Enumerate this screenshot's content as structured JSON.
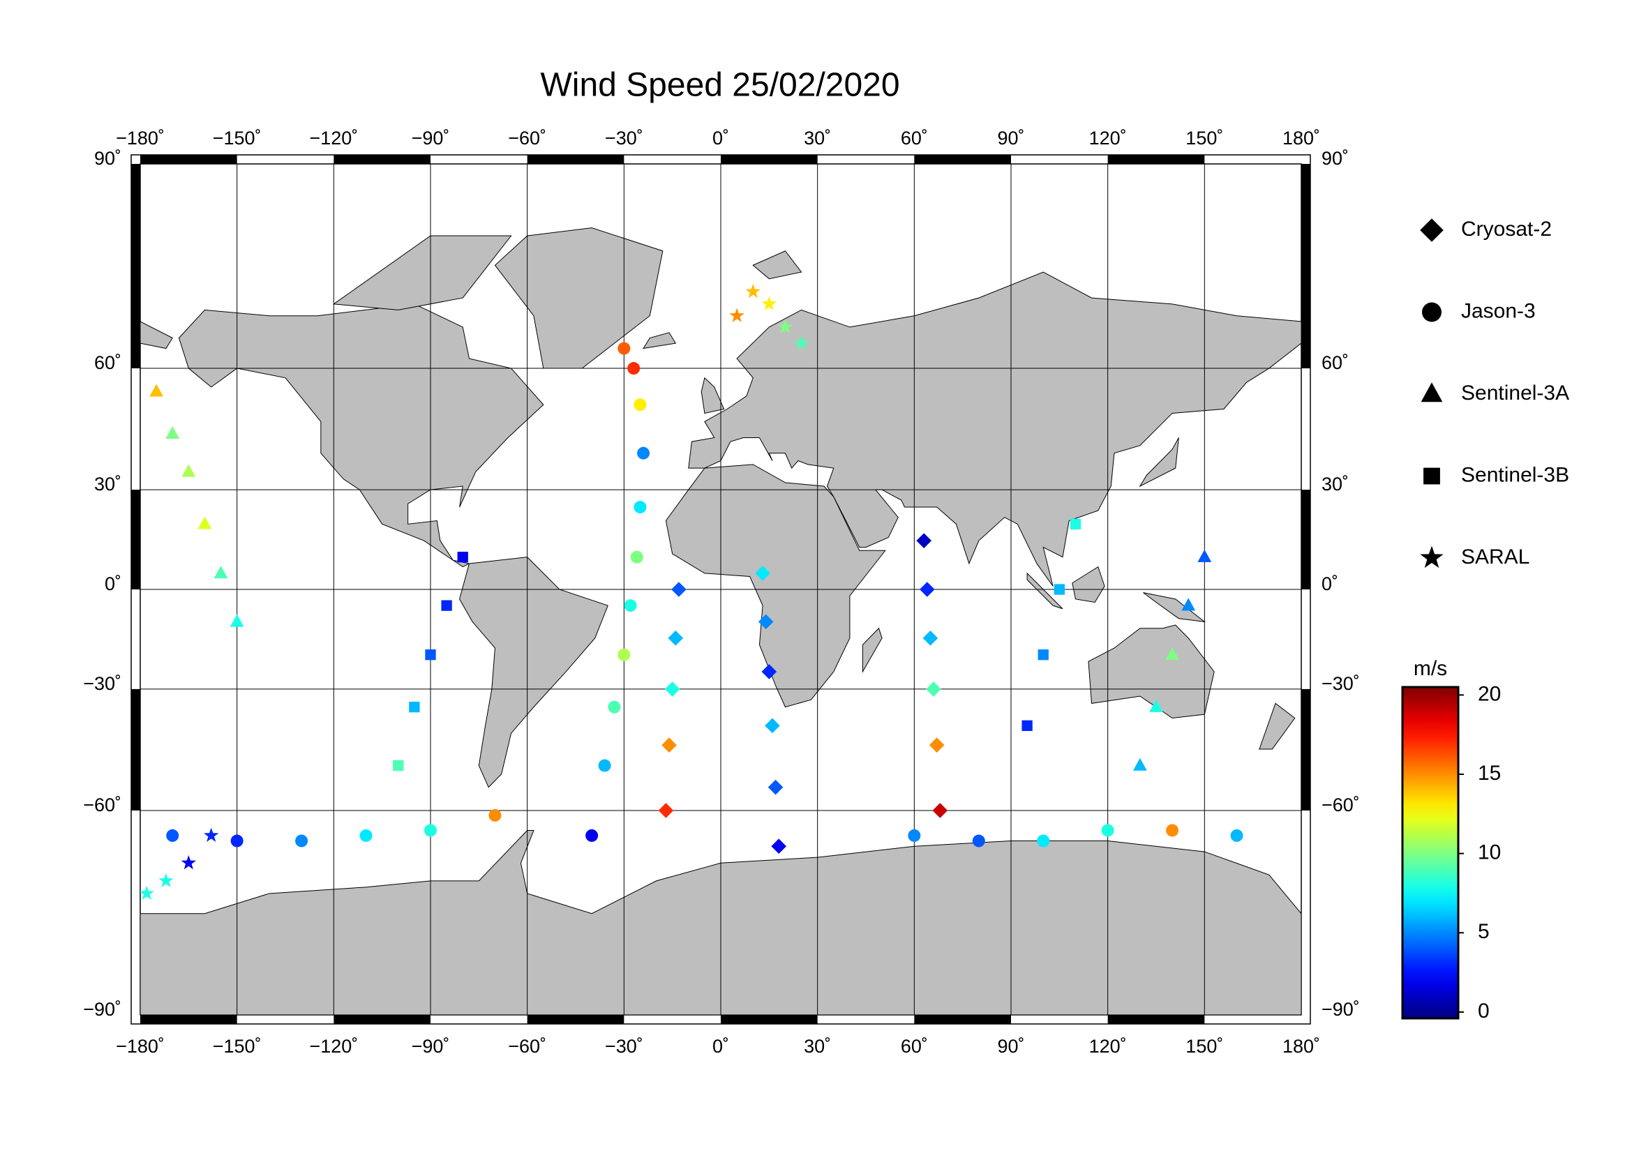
{
  "chart_data": {
    "type": "map",
    "title": "Wind Speed 25/02/2020",
    "projection": "miller",
    "xlim": [
      -180,
      180
    ],
    "ylim": [
      -90,
      90
    ],
    "grid": true,
    "land_color": "#bebebe",
    "xticks": [
      {
        "value": -180,
        "label": "−180˚"
      },
      {
        "value": -150,
        "label": "−150˚"
      },
      {
        "value": -120,
        "label": "−120˚"
      },
      {
        "value": -90,
        "label": "−90˚"
      },
      {
        "value": -60,
        "label": "−60˚"
      },
      {
        "value": -30,
        "label": "−30˚"
      },
      {
        "value": 0,
        "label": "0˚"
      },
      {
        "value": 30,
        "label": "30˚"
      },
      {
        "value": 60,
        "label": "60˚"
      },
      {
        "value": 90,
        "label": "90˚"
      },
      {
        "value": 120,
        "label": "120˚"
      },
      {
        "value": 150,
        "label": "150˚"
      },
      {
        "value": 180,
        "label": "180˚"
      }
    ],
    "yticks": [
      {
        "value": -90,
        "label": "−90˚"
      },
      {
        "value": -60,
        "label": "−60˚"
      },
      {
        "value": -30,
        "label": "−30˚"
      },
      {
        "value": 0,
        "label": "0˚"
      },
      {
        "value": 30,
        "label": "30˚"
      },
      {
        "value": 60,
        "label": "60˚"
      },
      {
        "value": 90,
        "label": "90˚"
      }
    ],
    "colorbar": {
      "label": "m/s",
      "colormap": "jet",
      "lim": [
        -0.4,
        20.5
      ],
      "ticks": [
        0,
        5,
        10,
        15,
        20
      ]
    },
    "series": [
      {
        "name": "Cryosat-2",
        "marker": "diamond",
        "lon": [
          18,
          17,
          16,
          15,
          14,
          13,
          -17,
          -16,
          -15,
          -14,
          -13,
          68,
          67,
          66,
          65,
          64,
          63
        ],
        "lat": [
          -67,
          -55,
          -40,
          -25,
          -10,
          5,
          -60,
          -45,
          -30,
          -15,
          0,
          -60,
          -45,
          -30,
          -15,
          0,
          15
        ],
        "values": [
          2,
          4,
          6,
          3,
          5,
          7,
          17,
          15,
          8,
          6,
          4,
          19,
          15,
          9,
          6,
          3,
          1
        ]
      },
      {
        "name": "Jason-3",
        "marker": "circle",
        "lon": [
          -170,
          -150,
          -130,
          -110,
          -90,
          -70,
          -40,
          -36,
          -33,
          -30,
          -28,
          -26,
          -25,
          -24,
          -25,
          -27,
          -30,
          60,
          80,
          100,
          120,
          140,
          160
        ],
        "lat": [
          -65,
          -66,
          -66,
          -65,
          -64,
          -61,
          -65,
          -50,
          -35,
          -20,
          -5,
          10,
          25,
          40,
          52,
          60,
          64,
          -65,
          -66,
          -66,
          -64,
          -64,
          -65
        ],
        "values": [
          4,
          3,
          5,
          7,
          8,
          15,
          2,
          6,
          9,
          11,
          8,
          10,
          7,
          5,
          13,
          17,
          16,
          5,
          4,
          7,
          8,
          15,
          6
        ]
      },
      {
        "name": "Sentinel-3A",
        "marker": "triangle",
        "lon": [
          -175,
          -170,
          -165,
          -160,
          -155,
          -150,
          130,
          135,
          140,
          145,
          150
        ],
        "lat": [
          55,
          45,
          35,
          20,
          5,
          -10,
          -50,
          -35,
          -20,
          -5,
          10
        ],
        "values": [
          14,
          10,
          11,
          12,
          9,
          8,
          6,
          8,
          10,
          5,
          4
        ]
      },
      {
        "name": "Sentinel-3B",
        "marker": "square",
        "lon": [
          -100,
          -95,
          -90,
          -85,
          -80,
          95,
          100,
          105,
          110
        ],
        "lat": [
          -50,
          -35,
          -20,
          -5,
          10,
          -40,
          -20,
          0,
          20
        ],
        "values": [
          9,
          6,
          4,
          3,
          2,
          3,
          5,
          6,
          8
        ]
      },
      {
        "name": "SARAL",
        "marker": "star",
        "lon": [
          -178,
          -172,
          -165,
          -158,
          5,
          10,
          15,
          20,
          25
        ],
        "lat": [
          -75,
          -73,
          -70,
          -65,
          70,
          74,
          72,
          68,
          65
        ],
        "values": [
          8,
          8,
          2,
          3,
          15,
          14,
          13,
          10,
          9
        ]
      }
    ]
  }
}
